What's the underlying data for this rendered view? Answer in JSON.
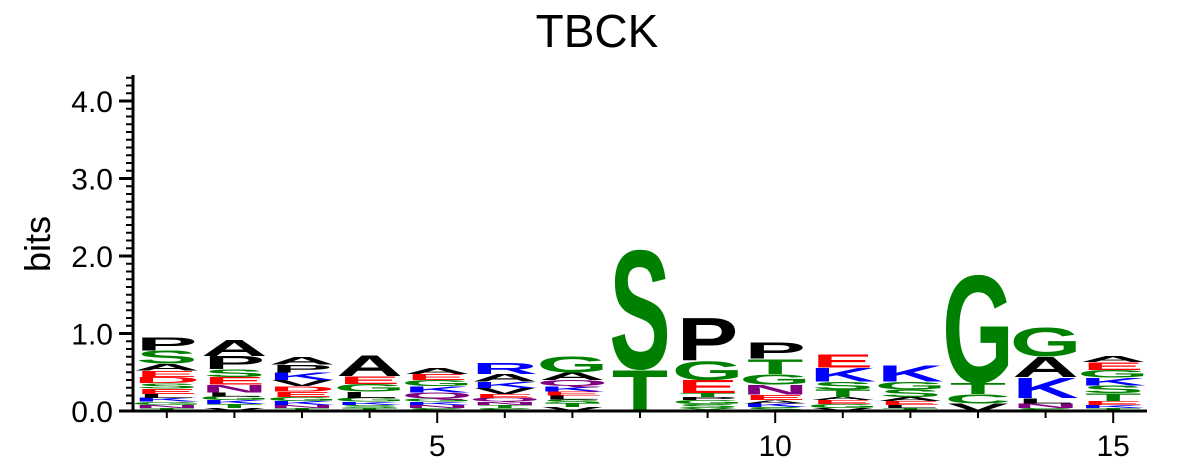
{
  "chart_data": {
    "type": "sequence-logo",
    "title": "TBCK",
    "ylabel": "bits",
    "xlabel": "",
    "ylim": [
      0,
      4.3
    ],
    "yticks": [
      {
        "value": 0.0,
        "label": "0.0"
      },
      {
        "value": 1.0,
        "label": "1.0"
      },
      {
        "value": 2.0,
        "label": "2.0"
      },
      {
        "value": 3.0,
        "label": "3.0"
      },
      {
        "value": 4.0,
        "label": "4.0"
      }
    ],
    "xticks": [
      {
        "value": 5,
        "label": "5"
      },
      {
        "value": 10,
        "label": "10"
      },
      {
        "value": 15,
        "label": "15"
      }
    ],
    "positions": [
      1,
      2,
      3,
      4,
      5,
      6,
      7,
      8,
      9,
      10,
      11,
      12,
      13,
      14,
      15
    ],
    "colors": {
      "hydrophobic": "#000000",
      "polar": "#008000",
      "basic": "#0000ff",
      "acidic": "#ff0000",
      "amide": "#800080"
    },
    "residue_colors": {
      "A": "#000000",
      "V": "#000000",
      "L": "#000000",
      "I": "#000000",
      "P": "#000000",
      "F": "#000000",
      "M": "#000000",
      "W": "#000000",
      "G": "#008000",
      "S": "#008000",
      "T": "#008000",
      "C": "#008000",
      "Y": "#008000",
      "K": "#0000ff",
      "R": "#0000ff",
      "H": "#0000ff",
      "D": "#ff0000",
      "E": "#ff0000",
      "N": "#800080",
      "Q": "#800080"
    },
    "stacks": [
      {
        "position": 1,
        "letters": [
          {
            "res": "T",
            "h": 0.04
          },
          {
            "res": "N",
            "h": 0.04
          },
          {
            "res": "G",
            "h": 0.04
          },
          {
            "res": "K",
            "h": 0.05
          },
          {
            "res": "L",
            "h": 0.05
          },
          {
            "res": "E",
            "h": 0.07
          },
          {
            "res": "S",
            "h": 0.07
          },
          {
            "res": "D",
            "h": 0.08
          },
          {
            "res": "E",
            "h": 0.08
          },
          {
            "res": "A",
            "h": 0.09
          },
          {
            "res": "S",
            "h": 0.17
          },
          {
            "res": "P",
            "h": 0.17
          }
        ]
      },
      {
        "position": 2,
        "letters": [
          {
            "res": "V",
            "h": 0.04
          },
          {
            "res": "T",
            "h": 0.05
          },
          {
            "res": "K",
            "h": 0.05
          },
          {
            "res": "G",
            "h": 0.05
          },
          {
            "res": "L",
            "h": 0.05
          },
          {
            "res": "N",
            "h": 0.1
          },
          {
            "res": "E",
            "h": 0.1
          },
          {
            "res": "S",
            "h": 0.1
          },
          {
            "res": "P",
            "h": 0.17
          },
          {
            "res": "A",
            "h": 0.22
          }
        ]
      },
      {
        "position": 3,
        "letters": [
          {
            "res": "T",
            "h": 0.04
          },
          {
            "res": "N",
            "h": 0.04
          },
          {
            "res": "K",
            "h": 0.05
          },
          {
            "res": "G",
            "h": 0.05
          },
          {
            "res": "E",
            "h": 0.07
          },
          {
            "res": "D",
            "h": 0.07
          },
          {
            "res": "V",
            "h": 0.08
          },
          {
            "res": "K",
            "h": 0.1
          },
          {
            "res": "P",
            "h": 0.1
          },
          {
            "res": "A",
            "h": 0.1
          }
        ]
      },
      {
        "position": 4,
        "letters": [
          {
            "res": "T",
            "h": 0.04
          },
          {
            "res": "S",
            "h": 0.04
          },
          {
            "res": "K",
            "h": 0.04
          },
          {
            "res": "G",
            "h": 0.05
          },
          {
            "res": "L",
            "h": 0.08
          },
          {
            "res": "G",
            "h": 0.1
          },
          {
            "res": "E",
            "h": 0.1
          },
          {
            "res": "A",
            "h": 0.28
          }
        ]
      },
      {
        "position": 5,
        "letters": [
          {
            "res": "S",
            "h": 0.04
          },
          {
            "res": "N",
            "h": 0.04
          },
          {
            "res": "K",
            "h": 0.04
          },
          {
            "res": "G",
            "h": 0.04
          },
          {
            "res": "Q",
            "h": 0.08
          },
          {
            "res": "K",
            "h": 0.08
          },
          {
            "res": "G",
            "h": 0.08
          },
          {
            "res": "E",
            "h": 0.08
          },
          {
            "res": "A",
            "h": 0.08
          }
        ]
      },
      {
        "position": 6,
        "letters": [
          {
            "res": "S",
            "h": 0.04
          },
          {
            "res": "T",
            "h": 0.04
          },
          {
            "res": "N",
            "h": 0.04
          },
          {
            "res": "Q",
            "h": 0.05
          },
          {
            "res": "E",
            "h": 0.05
          },
          {
            "res": "V",
            "h": 0.08
          },
          {
            "res": "K",
            "h": 0.08
          },
          {
            "res": "A",
            "h": 0.1
          },
          {
            "res": "R",
            "h": 0.15
          }
        ]
      },
      {
        "position": 7,
        "letters": [
          {
            "res": "V",
            "h": 0.05
          },
          {
            "res": "T",
            "h": 0.05
          },
          {
            "res": "S",
            "h": 0.05
          },
          {
            "res": "L",
            "h": 0.05
          },
          {
            "res": "E",
            "h": 0.05
          },
          {
            "res": "K",
            "h": 0.07
          },
          {
            "res": "Q",
            "h": 0.08
          },
          {
            "res": "A",
            "h": 0.1
          },
          {
            "res": "G",
            "h": 0.22
          }
        ]
      },
      {
        "position": 8,
        "letters": [
          {
            "res": "T",
            "h": 0.55
          },
          {
            "res": "S",
            "h": 1.6
          }
        ]
      },
      {
        "position": 9,
        "letters": [
          {
            "res": "Y",
            "h": 0.04
          },
          {
            "res": "S",
            "h": 0.05
          },
          {
            "res": "G",
            "h": 0.05
          },
          {
            "res": "P",
            "h": 0.04
          },
          {
            "res": "T",
            "h": 0.05
          },
          {
            "res": "E",
            "h": 0.17
          },
          {
            "res": "G",
            "h": 0.25
          },
          {
            "res": "P",
            "h": 0.58
          }
        ]
      },
      {
        "position": 10,
        "letters": [
          {
            "res": "S",
            "h": 0.05
          },
          {
            "res": "K",
            "h": 0.05
          },
          {
            "res": "A",
            "h": 0.04
          },
          {
            "res": "E",
            "h": 0.07
          },
          {
            "res": "N",
            "h": 0.13
          },
          {
            "res": "G",
            "h": 0.14
          },
          {
            "res": "T",
            "h": 0.2
          },
          {
            "res": "P",
            "h": 0.22
          }
        ]
      },
      {
        "position": 11,
        "letters": [
          {
            "res": "V",
            "h": 0.04
          },
          {
            "res": "G",
            "h": 0.05
          },
          {
            "res": "E",
            "h": 0.05
          },
          {
            "res": "A",
            "h": 0.04
          },
          {
            "res": "T",
            "h": 0.1
          },
          {
            "res": "S",
            "h": 0.1
          },
          {
            "res": "K",
            "h": 0.18
          },
          {
            "res": "E",
            "h": 0.17
          }
        ]
      },
      {
        "position": 12,
        "letters": [
          {
            "res": "T",
            "h": 0.04
          },
          {
            "res": "L",
            "h": 0.04
          },
          {
            "res": "E",
            "h": 0.05
          },
          {
            "res": "A",
            "h": 0.05
          },
          {
            "res": "S",
            "h": 0.1
          },
          {
            "res": "G",
            "h": 0.1
          },
          {
            "res": "K",
            "h": 0.22
          }
        ]
      },
      {
        "position": 13,
        "letters": [
          {
            "res": "V",
            "h": 0.1
          },
          {
            "res": "C",
            "h": 0.12
          },
          {
            "res": "T",
            "h": 0.15
          },
          {
            "res": "G",
            "h": 1.45
          }
        ]
      },
      {
        "position": 14,
        "letters": [
          {
            "res": "S",
            "h": 0.04
          },
          {
            "res": "N",
            "h": 0.06
          },
          {
            "res": "L",
            "h": 0.07
          },
          {
            "res": "K",
            "h": 0.27
          },
          {
            "res": "A",
            "h": 0.27
          },
          {
            "res": "G",
            "h": 0.38
          }
        ]
      },
      {
        "position": 15,
        "letters": [
          {
            "res": "T",
            "h": 0.04
          },
          {
            "res": "K",
            "h": 0.04
          },
          {
            "res": "E",
            "h": 0.05
          },
          {
            "res": "T",
            "h": 0.1
          },
          {
            "res": "S",
            "h": 0.1
          },
          {
            "res": "K",
            "h": 0.1
          },
          {
            "res": "G",
            "h": 0.1
          },
          {
            "res": "E",
            "h": 0.1
          },
          {
            "res": "A",
            "h": 0.08
          }
        ]
      }
    ]
  }
}
